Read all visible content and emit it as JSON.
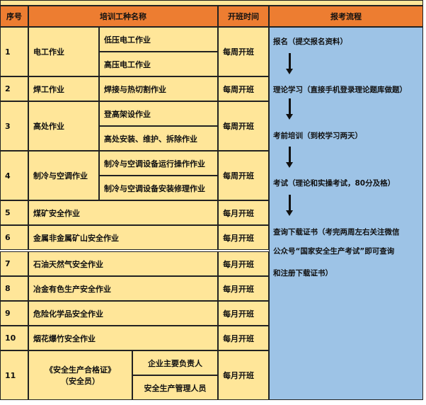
{
  "header": {
    "seq": "序号",
    "name": "培训工种名称",
    "time": "开班时间",
    "flow": "报考流程"
  },
  "rows": [
    {
      "seq": "1",
      "name": "电工作业",
      "subs": [
        "低压电工作业",
        "高压电工作业"
      ],
      "time": "每周开班"
    },
    {
      "seq": "2",
      "name": "焊工作业",
      "subs": [
        "焊接与热切割作业"
      ],
      "time": "每周开班"
    },
    {
      "seq": "3",
      "name": "高处作业",
      "subs": [
        "登高架设作业",
        "高处安装、维护、拆除作业"
      ],
      "time": "每周开班"
    },
    {
      "seq": "4",
      "name": "制冷与空调作业",
      "subs": [
        "制冷与空调设备运行操作作业",
        "制冷与空调设备安装修理作业"
      ],
      "time": "每周开班"
    },
    {
      "seq": "5",
      "name": "煤矿安全作业",
      "time": "每月开班"
    },
    {
      "seq": "6",
      "name": "金属非金属矿山安全作业",
      "time": "每月开班"
    },
    {
      "seq": "7",
      "name": "石油天然气安全作业",
      "time": "每月开班"
    },
    {
      "seq": "8",
      "name": "冶金有色生产安全作业",
      "time": "每月开班"
    },
    {
      "seq": "9",
      "name": "危险化学品安全作业",
      "time": "每月开班"
    },
    {
      "seq": "10",
      "name": "烟花爆竹安全作业",
      "time": "每月开班"
    },
    {
      "seq": "11",
      "name": "《安全生产合格证》",
      "name2": "（安全员）",
      "subs": [
        "企业主要负责人",
        "安全生产管理人员"
      ],
      "time": "每月开班"
    }
  ],
  "flow": [
    "报名（提交报名资料）",
    "理论学习（直接手机登录理论题库做题）",
    "考前培训（到校学习两天）",
    "考试（理论和实操考试，80分及格）",
    "查询下载证书（考完两周左右关注微信",
    "公众号“国家安全生产考试”即可查询",
    "和注册下载证书）"
  ],
  "colors": {
    "header": "#ED7D31",
    "cell": "#FFE699",
    "flow": "#9DC3E6"
  }
}
